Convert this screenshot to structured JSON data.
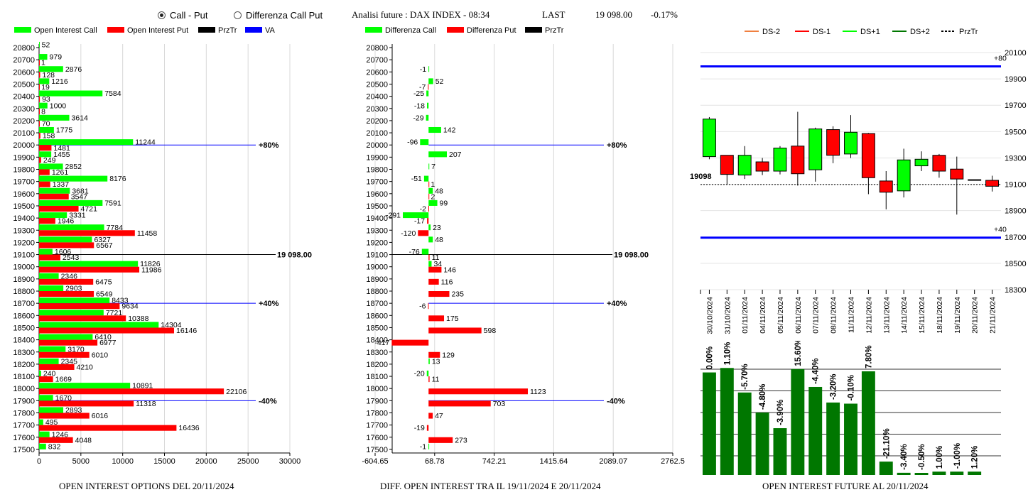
{
  "header": {
    "radio_call_put": "Call - Put",
    "radio_diff": "Differenza Call Put",
    "radio_selected": "call_put",
    "title": "Analisi future : DAX INDEX - 08:34",
    "last_label": "LAST",
    "last_value": "19 098.00",
    "last_change": "-0.17%"
  },
  "colors": {
    "green": "#00ff00",
    "red": "#ff0000",
    "blue": "#0000ff",
    "black": "#000000",
    "dark_green": "#007700",
    "dark_red": "#cc0000"
  },
  "chart_data": [
    {
      "type": "bar",
      "orientation": "horizontal",
      "footer": "OPEN INTEREST OPTIONS DEL 20/11/2024",
      "legend": [
        "Open Interest Call",
        "Open Interest Put",
        "PrzTr",
        "VA"
      ],
      "categories": [
        "20800",
        "20700",
        "20600",
        "20500",
        "20400",
        "20300",
        "20200",
        "20100",
        "20000",
        "19900",
        "19800",
        "19700",
        "19600",
        "19500",
        "19400",
        "19300",
        "19200",
        "19100",
        "19000",
        "18900",
        "18800",
        "18700",
        "18600",
        "18500",
        "18400",
        "18300",
        "18200",
        "18100",
        "18000",
        "17900",
        "17800",
        "17700",
        "17600",
        "17500"
      ],
      "series": [
        {
          "name": "Open Interest Call",
          "values": [
            52,
            979,
            2876,
            1216,
            7584,
            1000,
            3614,
            1775,
            11244,
            1455,
            2852,
            8176,
            3681,
            7591,
            3331,
            7784,
            6327,
            1606,
            11826,
            2346,
            2903,
            8433,
            7721,
            14304,
            6410,
            3170,
            2345,
            240,
            10891,
            1670,
            2893,
            495,
            1246,
            832
          ]
        },
        {
          "name": "Open Interest Put",
          "values": [
            null,
            1,
            128,
            19,
            93,
            8,
            70,
            158,
            1481,
            249,
            1261,
            1337,
            3547,
            4721,
            1946,
            11458,
            6567,
            2543,
            11986,
            6475,
            6549,
            9634,
            10388,
            16146,
            6977,
            6010,
            4210,
            1669,
            22106,
            11318,
            6016,
            16436,
            4048,
            null
          ]
        }
      ],
      "xlim": [
        0,
        30000
      ],
      "xticks": [
        "0",
        "5000",
        "10000",
        "15000",
        "20000",
        "25000",
        "30000"
      ],
      "lines": [
        {
          "strike": "20000",
          "label": "+80%"
        },
        {
          "strike": "18700",
          "label": "+40%"
        },
        {
          "strike": "17900",
          "label": "-40%"
        }
      ],
      "price_line": {
        "strike": "19100",
        "label": "19 098.00"
      }
    },
    {
      "type": "bar",
      "orientation": "horizontal",
      "footer": "DIFF. OPEN INTEREST TRA IL 19/11/2024 E 20/11/2024",
      "legend": [
        "Differenza Call",
        "Differenza Put",
        "PrzTr"
      ],
      "categories": [
        "20800",
        "20700",
        "20600",
        "20500",
        "20400",
        "20300",
        "20200",
        "20100",
        "20000",
        "19900",
        "19800",
        "19700",
        "19600",
        "19500",
        "19400",
        "19300",
        "19200",
        "19100",
        "19000",
        "18900",
        "18800",
        "18700",
        "18600",
        "18500",
        "18400",
        "18300",
        "18200",
        "18100",
        "18000",
        "17900",
        "17800",
        "17700",
        "17600",
        "17500"
      ],
      "series": [
        {
          "name": "Differenza Call",
          "values": [
            null,
            null,
            -1,
            52,
            -25,
            -18,
            -29,
            142,
            -96,
            207,
            7,
            -51,
            48,
            99,
            -291,
            23,
            48,
            -76,
            34,
            null,
            null,
            null,
            null,
            null,
            null,
            null,
            13,
            -20,
            null,
            null,
            null,
            null,
            null,
            -1
          ]
        },
        {
          "name": "Differenza Put",
          "values": [
            null,
            null,
            null,
            -7,
            null,
            null,
            null,
            null,
            null,
            null,
            null,
            1,
            2,
            -2,
            -17,
            -120,
            null,
            11,
            146,
            116,
            235,
            -6,
            175,
            598,
            -417,
            129,
            null,
            11,
            1123,
            703,
            47,
            -19,
            273,
            null
          ]
        }
      ],
      "xlim": [
        -604.65,
        2762.5
      ],
      "xticks": [
        "-604.65",
        "68.78",
        "742.21",
        "1415.64",
        "2089.07",
        "2762.5"
      ],
      "lines": [
        {
          "strike": "20000",
          "label": "+80%"
        },
        {
          "strike": "18700",
          "label": "+40%"
        },
        {
          "strike": "17900",
          "label": "-40%"
        }
      ],
      "price_line": {
        "strike": "19100",
        "label": "19 098.00"
      }
    },
    {
      "type": "candlestick",
      "legend": [
        "DS-2",
        "DS-1",
        "DS+1",
        "DS+2",
        "PrzTr"
      ],
      "categories": [
        "30/10/2024",
        "31/10/2024",
        "01/11/2024",
        "04/11/2024",
        "05/11/2024",
        "06/11/2024",
        "07/11/2024",
        "08/11/2024",
        "11/11/2024",
        "12/11/2024",
        "13/11/2024",
        "14/11/2024",
        "15/11/2024",
        "18/11/2024",
        "19/11/2024",
        "20/11/2024",
        "21/11/2024"
      ],
      "candles": [
        {
          "open": 19310,
          "close": 19595,
          "high": 19610,
          "low": 19290
        },
        {
          "open": 19320,
          "close": 19175,
          "high": 19320,
          "low": 19100
        },
        {
          "open": 19170,
          "close": 19320,
          "high": 19390,
          "low": 19140
        },
        {
          "open": 19270,
          "close": 19200,
          "high": 19300,
          "low": 19170
        },
        {
          "open": 19200,
          "close": 19375,
          "high": 19390,
          "low": 19175
        },
        {
          "open": 19390,
          "close": 19180,
          "high": 19650,
          "low": 19090
        },
        {
          "open": 19210,
          "close": 19520,
          "high": 19530,
          "low": 19120
        },
        {
          "open": 19515,
          "close": 19320,
          "high": 19540,
          "low": 19260
        },
        {
          "open": 19330,
          "close": 19495,
          "high": 19625,
          "low": 19300
        },
        {
          "open": 19485,
          "close": 19150,
          "high": 19490,
          "low": 19025
        },
        {
          "open": 19125,
          "close": 19040,
          "high": 19200,
          "low": 18910
        },
        {
          "open": 19050,
          "close": 19285,
          "high": 19370,
          "low": 19000
        },
        {
          "open": 19240,
          "close": 19290,
          "high": 19350,
          "low": 19200
        },
        {
          "open": 19320,
          "close": 19200,
          "high": 19330,
          "low": 19150
        },
        {
          "open": 19215,
          "close": 19140,
          "high": 19310,
          "low": 18870
        },
        {
          "open": 19135,
          "close": 19135,
          "high": 19135,
          "low": 19135
        },
        {
          "open": 19130,
          "close": 19085,
          "high": 19165,
          "low": 19045
        }
      ],
      "ylim": [
        18300,
        20100
      ],
      "yticks": [
        "20100",
        "19900",
        "19700",
        "19500",
        "19300",
        "19100",
        "18900",
        "18700",
        "18500",
        "18300"
      ],
      "levels": [
        {
          "label": "+80",
          "value": 19995
        },
        {
          "label": "+40",
          "value": 18695
        }
      ],
      "price": {
        "label": "19098",
        "value": 19098
      }
    },
    {
      "type": "bar",
      "footer": "OPEN INTEREST FUTURE AL 20/11/2024",
      "categories": [
        "30/10/2024",
        "31/10/2024",
        "01/11/2024",
        "04/11/2024",
        "05/11/2024",
        "06/11/2024",
        "07/11/2024",
        "08/11/2024",
        "11/11/2024",
        "12/11/2024",
        "13/11/2024",
        "14/11/2024",
        "15/11/2024",
        "18/11/2024",
        "19/11/2024",
        "20/11/2024",
        "21/11/2024"
      ],
      "values": [
        0.92,
        0.96,
        0.74,
        0.56,
        0.42,
        0.95,
        0.79,
        0.65,
        0.64,
        0.93,
        0.12,
        0.02,
        0.01,
        0.03,
        0.03,
        0.03,
        null
      ],
      "labels": [
        "0.00%",
        "1.10%",
        "-5.70%",
        "-4.80%",
        "-3.90%",
        "15.60%",
        "-4.40%",
        "-3.20%",
        "-0.10%",
        "7.80%",
        "-21.10%",
        "-3.40%",
        "-0.50%",
        "1.00%",
        "-1.00%",
        "1.20%",
        ""
      ]
    }
  ]
}
